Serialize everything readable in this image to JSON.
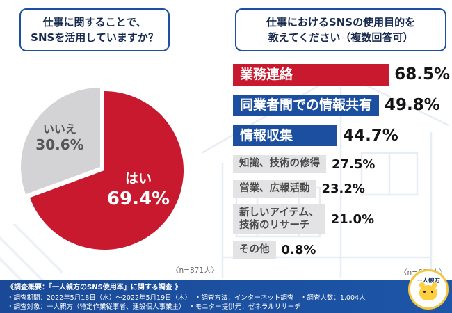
{
  "questions": {
    "left": "仕事に関することで、\nSNSを活用していますか？",
    "right": "仕事におけるSNSの使用目的を\n教えてください（複数回答可）"
  },
  "chart_data": [
    {
      "type": "pie",
      "title": "仕事に関することで、SNSを活用していますか？",
      "labels": [
        "はい",
        "いいえ"
      ],
      "values": [
        69.4,
        30.6
      ],
      "colors": [
        "#c9192e",
        "#d3d3d5"
      ],
      "n": "〈n=871人〉"
    },
    {
      "type": "bar",
      "title": "仕事におけるSNSの使用目的を教えてください（複数回答可）",
      "xlim": [
        0,
        70
      ],
      "items": [
        {
          "label": "業務連絡",
          "value": 68.5,
          "color": "#c9192e",
          "text_color": "#ffffff"
        },
        {
          "label": "同業者間での情報共有",
          "value": 49.8,
          "color": "#1c4f9f",
          "text_color": "#ffffff"
        },
        {
          "label": "情報収集",
          "value": 44.7,
          "color": "#1c4f9f",
          "text_color": "#ffffff"
        },
        {
          "label": "知識、技術の修得",
          "value": 27.5,
          "color": "#e3e3e5",
          "text_color": "#4a4a4a"
        },
        {
          "label": "営業、広報活動",
          "value": 23.2,
          "color": "#e3e3e5",
          "text_color": "#4a4a4a"
        },
        {
          "label": "新しいアイテム、\n技術のリサーチ",
          "value": 21.0,
          "color": "#e3e3e5",
          "text_color": "#4a4a4a"
        },
        {
          "label": "その他",
          "value": 0.8,
          "color": "#e3e3e5",
          "text_color": "#4a4a4a"
        }
      ],
      "n": "〈n=604人〉"
    }
  ],
  "footer": {
    "line1": "《調査概要：「一人親方のSNS使用率」に関する調査 》",
    "line2": "・調査期間：2022年5月18日（水）～2022年5月19日（木）　・調査方法：インターネット調査　・調査人数：1,004人",
    "line3": "・調査対象：一人親方（特定作業従事者、建設個人事業主）　・モニター提供元：ゼネラルリサーチ"
  },
  "logo": {
    "text": "一人親方"
  },
  "colors": {
    "accent_red": "#c9192e",
    "accent_blue": "#1c4f9f",
    "pie_gray": "#d3d3d5",
    "bar_gray": "#e3e3e5",
    "footer_blue": "#1a4a97"
  }
}
